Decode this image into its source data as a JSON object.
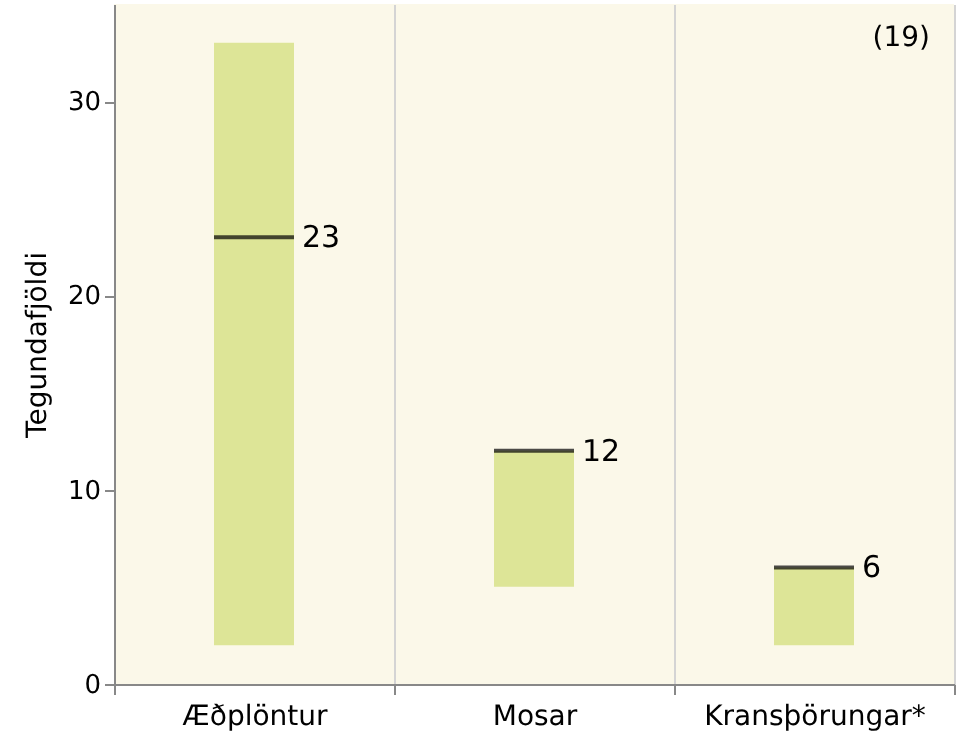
{
  "chart_data": {
    "type": "box",
    "ylabel": "Tegundafjöldi",
    "categories": [
      "Æðplöntur",
      "Mosar",
      "Kransþörungar*"
    ],
    "series": [
      {
        "color": "#dde597",
        "boxes": [
          {
            "low": 2,
            "q1": 2,
            "median": 23,
            "q3": 33,
            "high": 33
          },
          {
            "low": 5,
            "q1": 5,
            "median": 12,
            "q3": 12,
            "high": 12
          },
          {
            "low": 2,
            "q1": 2,
            "median": 6,
            "q3": 6,
            "high": 6
          }
        ]
      }
    ],
    "ylim": [
      0,
      35
    ],
    "yticks": [
      0,
      10,
      20,
      30
    ],
    "grid": "x",
    "annotations": [
      "(19)",
      {
        "text": "23",
        "x": "Æðplöntur",
        "y": 23
      },
      {
        "text": "12",
        "x": "Mosar",
        "y": 12
      },
      {
        "text": "6",
        "x": "Kransþörungar*",
        "y": 6
      }
    ]
  }
}
